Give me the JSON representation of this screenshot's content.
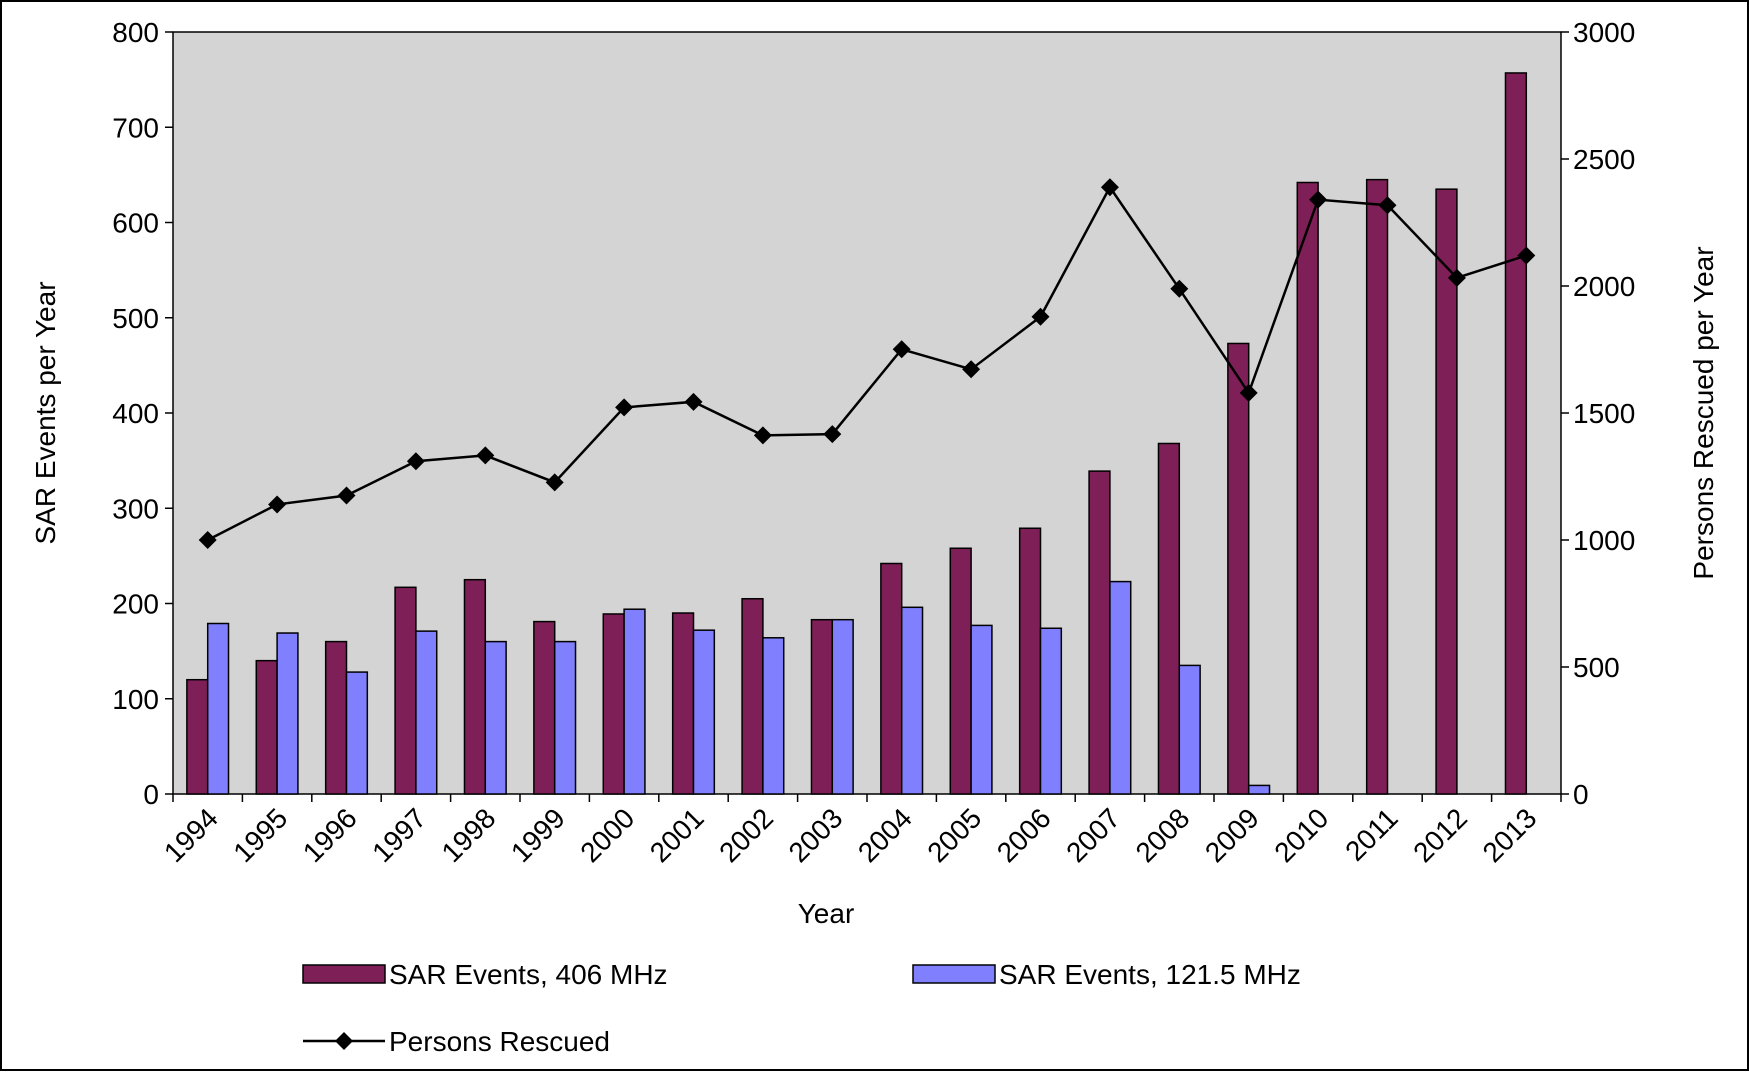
{
  "chart_data": {
    "type": "bar",
    "x_label": "Year",
    "y_label": "SAR Events per Year",
    "y2_label": "Persons Rescued per Year",
    "categories": [
      "1994",
      "1995",
      "1996",
      "1997",
      "1998",
      "1999",
      "2000",
      "2001",
      "2002",
      "2003",
      "2004",
      "2005",
      "2006",
      "2007",
      "2008",
      "2009",
      "2010",
      "2011",
      "2012",
      "2013"
    ],
    "series": [
      {
        "name": "SAR Events, 406 MHz",
        "type": "bar",
        "color": "#7f1f57",
        "values": [
          120,
          140,
          160,
          217,
          225,
          181,
          189,
          190,
          205,
          183,
          242,
          258,
          279,
          339,
          368,
          473,
          642,
          645,
          635,
          757
        ]
      },
      {
        "name": "SAR Events, 121.5 MHz",
        "type": "bar",
        "color": "#8080ff",
        "values": [
          179,
          169,
          128,
          171,
          160,
          160,
          194,
          172,
          164,
          183,
          196,
          177,
          174,
          223,
          135,
          9,
          null,
          null,
          null,
          null
        ]
      },
      {
        "name": "Persons Rescued",
        "type": "line",
        "axis": "y2",
        "color": "#000000",
        "values": [
          1000,
          1140,
          1175,
          1310,
          1333,
          1227,
          1522,
          1544,
          1412,
          1417,
          1751,
          1672,
          1879,
          2389,
          1989,
          1579,
          2340,
          2318,
          2032,
          2120
        ]
      }
    ],
    "ylim": [
      0,
      800
    ],
    "yticks": [
      0,
      100,
      200,
      300,
      400,
      500,
      600,
      700,
      800
    ],
    "y2lim": [
      0,
      3000
    ],
    "y2ticks": [
      0,
      500,
      1000,
      1500,
      2000,
      2500,
      3000
    ],
    "plot_background": "#d4d4d4",
    "legend": "bottom"
  }
}
